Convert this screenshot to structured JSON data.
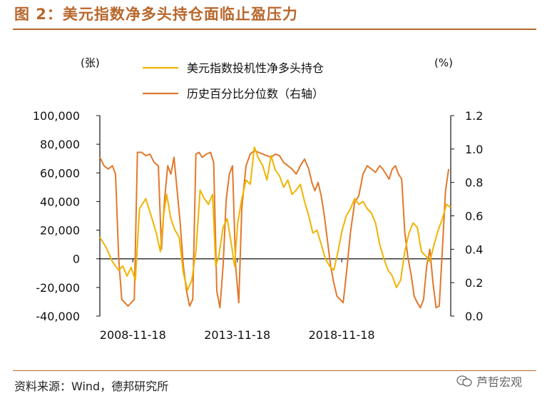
{
  "figure": {
    "title": "图 2：美元指数净多头持仓面临止盈压力",
    "source": "资料来源：Wind，德邦研究所",
    "watermark": "芦哲宏观"
  },
  "colors": {
    "series1": "#f0b400",
    "series2": "#e2782a",
    "brand": "#b8672c"
  },
  "chart_data": {
    "type": "line",
    "title": "美元指数净多头持仓面临止盈压力",
    "left_unit": "(张)",
    "right_unit": "(%)",
    "y_left_range": [
      -40000,
      100000
    ],
    "y_right_range": [
      0.0,
      1.2
    ],
    "y_left_ticks": [
      "100,000",
      "80,000",
      "60,000",
      "40,000",
      "20,000",
      "0",
      "-20,000",
      "-40,000"
    ],
    "y_right_ticks": [
      "1.2",
      "1.0",
      "0.8",
      "0.6",
      "0.4",
      "0.2",
      "0.0"
    ],
    "x_ticks": [
      "2008-11-18",
      "2013-11-18",
      "2018-11-18"
    ],
    "x_domain": [
      2007.3,
      2024.1
    ],
    "x_tick_positions": [
      2008.88,
      2013.88,
      2018.88
    ],
    "series": [
      {
        "name": "美元指数投机性净多头持仓",
        "axis": "left",
        "x": [
          2007.3,
          2007.6,
          2007.9,
          2008.2,
          2008.4,
          2008.6,
          2008.8,
          2009.0,
          2009.2,
          2009.5,
          2009.8,
          2010.0,
          2010.2,
          2010.35,
          2010.5,
          2010.7,
          2010.9,
          2011.1,
          2011.3,
          2011.5,
          2011.7,
          2011.9,
          2012.1,
          2012.3,
          2012.5,
          2012.7,
          2012.85,
          2013.0,
          2013.2,
          2013.4,
          2013.6,
          2013.75,
          2013.9,
          2014.1,
          2014.3,
          2014.5,
          2014.7,
          2014.9,
          2015.1,
          2015.3,
          2015.5,
          2015.7,
          2015.9,
          2016.1,
          2016.3,
          2016.5,
          2016.7,
          2016.9,
          2017.1,
          2017.3,
          2017.5,
          2017.7,
          2017.9,
          2018.1,
          2018.3,
          2018.5,
          2018.7,
          2018.9,
          2019.1,
          2019.3,
          2019.5,
          2019.7,
          2019.9,
          2020.1,
          2020.3,
          2020.5,
          2020.7,
          2020.9,
          2021.1,
          2021.3,
          2021.5,
          2021.7,
          2021.9,
          2022.1,
          2022.3,
          2022.5,
          2022.7,
          2022.9,
          2023.1,
          2023.3,
          2023.5,
          2023.7,
          2023.9,
          2024.1
        ],
        "values": [
          15000,
          8000,
          -2000,
          -8000,
          -5000,
          -12000,
          -6000,
          -15000,
          35000,
          42000,
          28000,
          18000,
          5000,
          30000,
          45000,
          28000,
          20000,
          15000,
          -10000,
          -22000,
          -15000,
          5000,
          48000,
          42000,
          38000,
          45000,
          -5000,
          2000,
          22000,
          28000,
          10000,
          -5000,
          25000,
          42000,
          55000,
          52000,
          78000,
          70000,
          65000,
          55000,
          72000,
          62000,
          58000,
          50000,
          55000,
          45000,
          48000,
          52000,
          40000,
          30000,
          18000,
          20000,
          10000,
          0,
          -5000,
          -8000,
          5000,
          20000,
          30000,
          35000,
          42000,
          38000,
          40000,
          35000,
          32000,
          25000,
          10000,
          0,
          -8000,
          -12000,
          -20000,
          -15000,
          5000,
          18000,
          25000,
          22000,
          5000,
          2000,
          -2000,
          10000,
          20000,
          28000,
          38000,
          36000
        ]
      },
      {
        "name": "历史百分比分位数（右轴）",
        "axis": "right",
        "x": [
          2007.3,
          2007.5,
          2007.7,
          2007.9,
          2008.05,
          2008.2,
          2008.35,
          2008.5,
          2008.65,
          2008.8,
          2008.95,
          2009.1,
          2009.3,
          2009.5,
          2009.7,
          2009.9,
          2010.1,
          2010.25,
          2010.4,
          2010.55,
          2010.7,
          2010.85,
          2011.0,
          2011.15,
          2011.3,
          2011.45,
          2011.6,
          2011.75,
          2011.9,
          2012.05,
          2012.2,
          2012.4,
          2012.6,
          2012.75,
          2012.9,
          2013.05,
          2013.2,
          2013.35,
          2013.5,
          2013.65,
          2013.8,
          2013.95,
          2014.1,
          2014.3,
          2014.5,
          2014.7,
          2014.9,
          2015.1,
          2015.3,
          2015.5,
          2015.7,
          2015.9,
          2016.1,
          2016.3,
          2016.5,
          2016.7,
          2016.9,
          2017.1,
          2017.3,
          2017.45,
          2017.6,
          2017.75,
          2017.9,
          2018.05,
          2018.2,
          2018.35,
          2018.5,
          2018.65,
          2018.8,
          2018.95,
          2019.1,
          2019.3,
          2019.5,
          2019.7,
          2019.9,
          2020.1,
          2020.3,
          2020.5,
          2020.7,
          2020.85,
          2021.0,
          2021.15,
          2021.3,
          2021.45,
          2021.6,
          2021.75,
          2021.9,
          2022.05,
          2022.2,
          2022.35,
          2022.5,
          2022.65,
          2022.8,
          2022.95,
          2023.1,
          2023.25,
          2023.4,
          2023.55,
          2023.7,
          2023.85,
          2024.0
        ],
        "values": [
          0.95,
          0.9,
          0.88,
          0.9,
          0.85,
          0.35,
          0.1,
          0.08,
          0.06,
          0.08,
          0.1,
          0.98,
          0.98,
          0.96,
          0.97,
          0.92,
          0.9,
          0.4,
          0.7,
          0.9,
          0.85,
          0.95,
          0.75,
          0.55,
          0.3,
          0.15,
          0.06,
          0.1,
          0.97,
          0.98,
          0.95,
          0.97,
          0.98,
          0.92,
          0.15,
          0.05,
          0.3,
          0.7,
          0.85,
          0.9,
          0.3,
          0.08,
          0.65,
          0.9,
          0.97,
          0.99,
          0.98,
          0.97,
          0.96,
          0.95,
          0.97,
          0.96,
          0.92,
          0.9,
          0.88,
          0.85,
          0.9,
          0.94,
          0.88,
          0.8,
          0.75,
          0.8,
          0.72,
          0.6,
          0.45,
          0.3,
          0.2,
          0.12,
          0.1,
          0.08,
          0.25,
          0.5,
          0.68,
          0.72,
          0.85,
          0.9,
          0.88,
          0.86,
          0.9,
          0.88,
          0.85,
          0.82,
          0.88,
          0.9,
          0.85,
          0.82,
          0.5,
          0.35,
          0.25,
          0.12,
          0.08,
          0.05,
          0.1,
          0.3,
          0.4,
          0.2,
          0.05,
          0.06,
          0.4,
          0.75,
          0.88
        ]
      }
    ]
  }
}
